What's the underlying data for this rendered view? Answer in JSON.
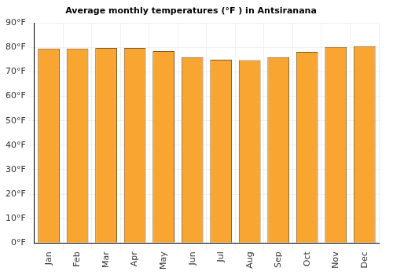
{
  "chart_data": {
    "type": "bar",
    "title": "Average monthly temperatures (°F ) in Antsiranana",
    "categories": [
      "Jan",
      "Feb",
      "Mar",
      "Apr",
      "May",
      "Jun",
      "Jul",
      "Aug",
      "Sep",
      "Oct",
      "Nov",
      "Dec"
    ],
    "values": [
      79.5,
      79.5,
      79.8,
      79.8,
      78.5,
      76,
      75,
      74.8,
      76,
      78.2,
      80.2,
      80.5
    ],
    "color": "#f9a532",
    "ylim": [
      0,
      90
    ],
    "yticks": [
      {
        "value": 0,
        "label": "0°F"
      },
      {
        "value": 10,
        "label": "10°F"
      },
      {
        "value": 20,
        "label": "20°F"
      },
      {
        "value": 30,
        "label": "30°F"
      },
      {
        "value": 40,
        "label": "40°F"
      },
      {
        "value": 50,
        "label": "50°F"
      },
      {
        "value": 60,
        "label": "60°F"
      },
      {
        "value": 70,
        "label": "70°F"
      },
      {
        "value": 80,
        "label": "80°F"
      },
      {
        "value": 90,
        "label": "90°F"
      }
    ],
    "grid": true
  }
}
